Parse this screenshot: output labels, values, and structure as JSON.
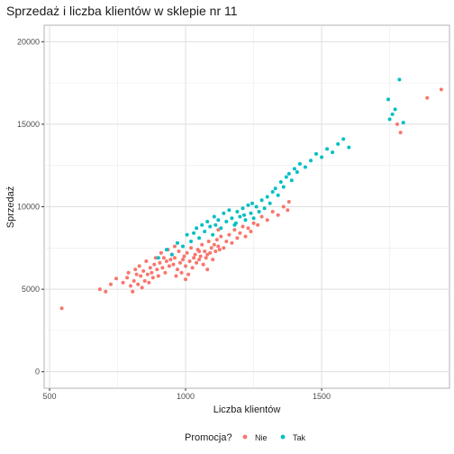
{
  "chart_data": {
    "type": "scatter",
    "title": "Sprzedaż i liczba klientów w sklepie nr 11",
    "xlabel": "Liczba klientów",
    "ylabel": "Sprzedaż",
    "xlim": [
      480,
      1970
    ],
    "ylim": [
      -1000,
      21000
    ],
    "x_ticks": [
      500,
      1000,
      1500
    ],
    "y_ticks": [
      0,
      5000,
      10000,
      15000,
      20000
    ],
    "grid": true,
    "legend": {
      "title": "Promocja?",
      "position": "bottom"
    },
    "series": [
      {
        "name": "Nie",
        "color": "#F8766D",
        "points": [
          [
            545,
            3850
          ],
          [
            685,
            5000
          ],
          [
            706,
            4850
          ],
          [
            725,
            5300
          ],
          [
            745,
            5650
          ],
          [
            770,
            5400
          ],
          [
            785,
            5700
          ],
          [
            790,
            6000
          ],
          [
            798,
            5200
          ],
          [
            805,
            4850
          ],
          [
            810,
            5500
          ],
          [
            815,
            6200
          ],
          [
            820,
            5900
          ],
          [
            825,
            5300
          ],
          [
            830,
            6400
          ],
          [
            835,
            5800
          ],
          [
            840,
            5100
          ],
          [
            845,
            6100
          ],
          [
            850,
            5500
          ],
          [
            855,
            6700
          ],
          [
            860,
            5900
          ],
          [
            865,
            5400
          ],
          [
            870,
            6300
          ],
          [
            875,
            6000
          ],
          [
            880,
            5700
          ],
          [
            885,
            6500
          ],
          [
            890,
            6900
          ],
          [
            895,
            6200
          ],
          [
            900,
            5800
          ],
          [
            905,
            6600
          ],
          [
            910,
            7200
          ],
          [
            915,
            6300
          ],
          [
            920,
            6900
          ],
          [
            925,
            6000
          ],
          [
            930,
            6700
          ],
          [
            935,
            7400
          ],
          [
            940,
            6400
          ],
          [
            945,
            6800
          ],
          [
            950,
            7100
          ],
          [
            955,
            6500
          ],
          [
            960,
            6900
          ],
          [
            965,
            5800
          ],
          [
            970,
            6200
          ],
          [
            975,
            7300
          ],
          [
            980,
            6600
          ],
          [
            985,
            6000
          ],
          [
            990,
            6800
          ],
          [
            995,
            7000
          ],
          [
            1000,
            6400
          ],
          [
            1005,
            7200
          ],
          [
            1010,
            5900
          ],
          [
            1015,
            6700
          ],
          [
            1020,
            7500
          ],
          [
            1025,
            6300
          ],
          [
            1030,
            6900
          ],
          [
            1035,
            7100
          ],
          [
            1040,
            6600
          ],
          [
            1045,
            7400
          ],
          [
            1050,
            6800
          ],
          [
            1055,
            7000
          ],
          [
            1060,
            7700
          ],
          [
            1065,
            6500
          ],
          [
            1070,
            7300
          ],
          [
            1075,
            6900
          ],
          [
            1080,
            7100
          ],
          [
            1085,
            7900
          ],
          [
            1090,
            7200
          ],
          [
            1095,
            7500
          ],
          [
            1100,
            6800
          ],
          [
            1105,
            7700
          ],
          [
            1110,
            7300
          ],
          [
            1115,
            8000
          ],
          [
            1120,
            7600
          ],
          [
            1125,
            7400
          ],
          [
            1130,
            8200
          ],
          [
            1140,
            7500
          ],
          [
            1150,
            7900
          ],
          [
            1160,
            8300
          ],
          [
            1170,
            7800
          ],
          [
            1180,
            8600
          ],
          [
            1190,
            8100
          ],
          [
            1200,
            8400
          ],
          [
            1210,
            8800
          ],
          [
            1220,
            8200
          ],
          [
            1230,
            8700
          ],
          [
            1240,
            8500
          ],
          [
            1250,
            9000
          ],
          [
            1265,
            8900
          ],
          [
            1280,
            9400
          ],
          [
            1300,
            9200
          ],
          [
            1320,
            9700
          ],
          [
            1340,
            9500
          ],
          [
            1360,
            10000
          ],
          [
            1375,
            9800
          ],
          [
            1380,
            10300
          ],
          [
            1050,
            7300
          ],
          [
            960,
            7600
          ],
          [
            1080,
            6200
          ],
          [
            1000,
            5600
          ],
          [
            1120,
            8600
          ],
          [
            1778,
            15000
          ],
          [
            1790,
            14500
          ],
          [
            1888,
            16600
          ],
          [
            1940,
            17100
          ]
        ]
      },
      {
        "name": "Tak",
        "color": "#00BFC4",
        "points": [
          [
            900,
            6900
          ],
          [
            930,
            7400
          ],
          [
            950,
            7100
          ],
          [
            970,
            7800
          ],
          [
            990,
            7600
          ],
          [
            1005,
            8300
          ],
          [
            1020,
            7900
          ],
          [
            1030,
            8400
          ],
          [
            1040,
            8700
          ],
          [
            1050,
            8100
          ],
          [
            1060,
            8900
          ],
          [
            1070,
            8500
          ],
          [
            1080,
            9100
          ],
          [
            1090,
            8800
          ],
          [
            1100,
            8300
          ],
          [
            1105,
            9400
          ],
          [
            1110,
            8900
          ],
          [
            1120,
            9200
          ],
          [
            1130,
            8700
          ],
          [
            1140,
            9600
          ],
          [
            1150,
            9100
          ],
          [
            1160,
            9800
          ],
          [
            1170,
            9300
          ],
          [
            1180,
            8900
          ],
          [
            1190,
            9700
          ],
          [
            1200,
            9400
          ],
          [
            1210,
            9900
          ],
          [
            1220,
            9200
          ],
          [
            1230,
            10100
          ],
          [
            1240,
            9600
          ],
          [
            1250,
            9300
          ],
          [
            1260,
            10000
          ],
          [
            1270,
            9700
          ],
          [
            1280,
            10400
          ],
          [
            1290,
            9900
          ],
          [
            1300,
            10600
          ],
          [
            1310,
            10200
          ],
          [
            1320,
            10900
          ],
          [
            1330,
            11100
          ],
          [
            1340,
            10700
          ],
          [
            1350,
            11500
          ],
          [
            1360,
            11200
          ],
          [
            1370,
            11800
          ],
          [
            1380,
            12000
          ],
          [
            1390,
            11600
          ],
          [
            1400,
            12300
          ],
          [
            1410,
            12100
          ],
          [
            1420,
            12600
          ],
          [
            1440,
            12400
          ],
          [
            1460,
            12800
          ],
          [
            1480,
            13200
          ],
          [
            1500,
            13000
          ],
          [
            1520,
            13500
          ],
          [
            1540,
            13300
          ],
          [
            1560,
            13800
          ],
          [
            1580,
            14100
          ],
          [
            1600,
            13600
          ],
          [
            1185,
            9000
          ],
          [
            1215,
            9500
          ],
          [
            1245,
            10200
          ],
          [
            1745,
            16500
          ],
          [
            1750,
            15300
          ],
          [
            1760,
            15600
          ],
          [
            1770,
            15900
          ],
          [
            1786,
            17700
          ],
          [
            1800,
            15100
          ]
        ]
      }
    ]
  }
}
